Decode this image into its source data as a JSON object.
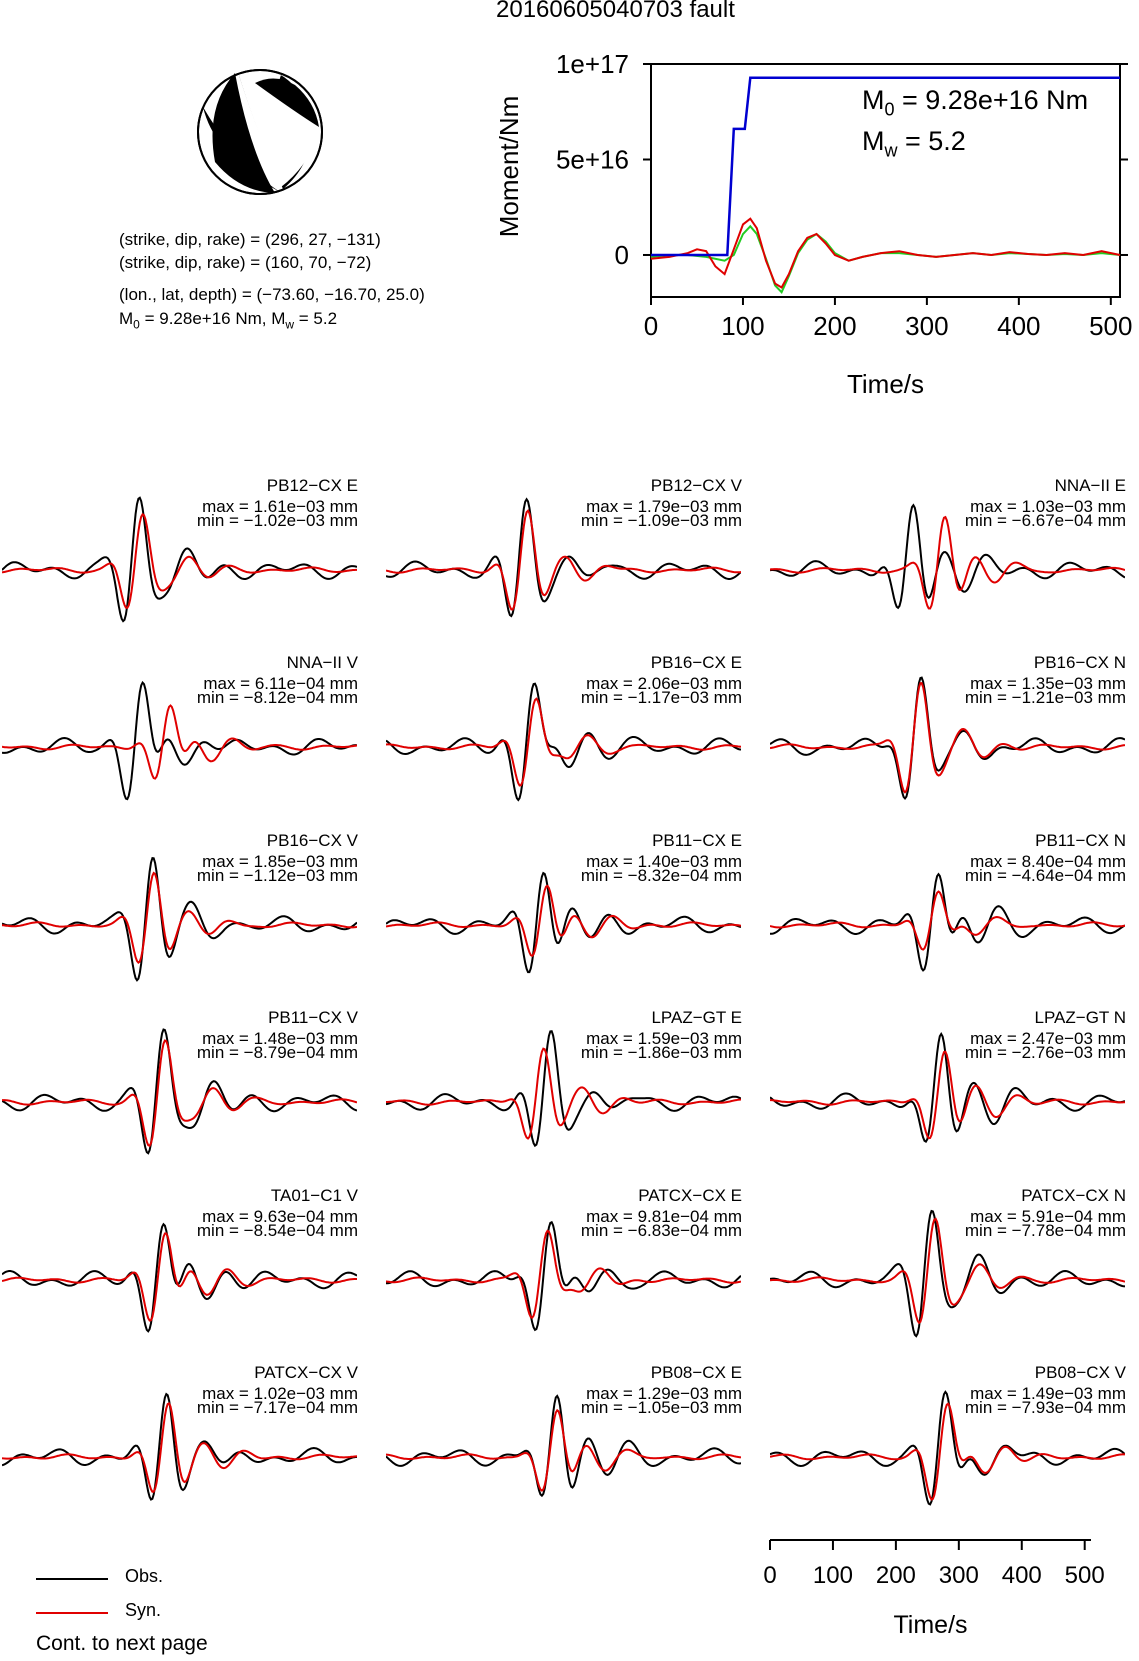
{
  "title": "20160605040703 fault",
  "focal_mechanism": {
    "icon": "beachball-icon",
    "lines": [
      "(strike, dip, rake) = (296, 27, −131)",
      "(strike, dip, rake) = (160, 70, −72)",
      "(lon., lat, depth) = (−73.60, −16.70, 25.0)"
    ],
    "moment_line": {
      "m_prefix": "M",
      "m_sub": "0",
      "m_text": " = 9.28e+16 Nm, M",
      "w_sub": "w",
      "w_text": " = 5.2"
    }
  },
  "colors": {
    "observed": "#000000",
    "synthetic": "#e00000",
    "stf": "#0000d0",
    "stf_green": "#22cc22"
  },
  "chart_data": [
    {
      "type": "line",
      "title": "",
      "xlabel": "Time/s",
      "ylabel": "Moment/Nm",
      "xlim": [
        0,
        510
      ],
      "ylim": [
        -2.2e+16,
        1e+17
      ],
      "xticks": [
        "0",
        "100",
        "200",
        "300",
        "400",
        "500"
      ],
      "yticks": [
        "0",
        "5e+16",
        "1e+17"
      ],
      "annotation": {
        "m0_prefix": "M",
        "m0_sub": "0",
        "m0_text": " = 9.28e+16 Nm",
        "mw_prefix": "M",
        "mw_sub": "w",
        "mw_text": " = 5.2"
      },
      "series": [
        {
          "color": "#0000d0",
          "x": [
            0,
            83,
            90,
            102,
            108,
            510
          ],
          "y": [
            0,
            0,
            6.6e+16,
            6.6e+16,
            9.28e+16,
            9.28e+16
          ]
        },
        {
          "color": "#e00000",
          "x": [
            0,
            20,
            40,
            50,
            60,
            70,
            80,
            90,
            100,
            108,
            115,
            125,
            135,
            142,
            150,
            160,
            170,
            180,
            190,
            200,
            215,
            230,
            250,
            270,
            290,
            310,
            330,
            350,
            370,
            390,
            410,
            430,
            450,
            470,
            490,
            510
          ],
          "y": [
            -2000000000000000.0,
            -1000000000000000.0,
            1000000000000000.0,
            3000000000000000.0,
            2000000000000000.0,
            -6000000000000000.0,
            -1e+16,
            3000000000000000.0,
            1.6e+16,
            1.9e+16,
            1.4e+16,
            -3000000000000000.0,
            -1.5e+16,
            -1.7e+16,
            -1e+16,
            2000000000000000.0,
            9000000000000000.0,
            1.1e+16,
            6000000000000000.0,
            0.0,
            -3000000000000000.0,
            -1000000000000000.0,
            1000000000000000.0,
            2000000000000000.0,
            0.0,
            -1000000000000000.0,
            0.0,
            1000000000000000.0,
            0.0,
            1500000000000000.0,
            500000000000000.0,
            0.0,
            1000000000000000.0,
            0.0,
            2000000000000000.0,
            0.0
          ]
        },
        {
          "color": "#22cc22",
          "x": [
            0,
            20,
            40,
            60,
            80,
            90,
            100,
            108,
            115,
            125,
            135,
            142,
            150,
            160,
            170,
            180,
            190,
            200,
            215,
            230,
            250,
            270,
            290,
            310,
            330,
            350,
            370,
            390,
            410,
            430,
            450,
            470,
            490,
            510
          ],
          "y": [
            -1000000000000000.0,
            0.0,
            0.0,
            -1000000000000000.0,
            -3000000000000000.0,
            0.0,
            1.1e+16,
            1.5e+16,
            1.1e+16,
            -2000000000000000.0,
            -1.6e+16,
            -1.95e+16,
            -1.1e+16,
            1000000000000000.0,
            8000000000000000.0,
            1.1e+16,
            7000000000000000.0,
            1000000000000000.0,
            -3000000000000000.0,
            -1000000000000000.0,
            1000000000000000.0,
            1000000000000000.0,
            0.0,
            -1000000000000000.0,
            0.0,
            1000000000000000.0,
            0.0,
            1000000000000000.0,
            500000000000000.0,
            0.0,
            500000000000000.0,
            0.0,
            1000000000000000.0,
            0.0
          ]
        }
      ]
    },
    {
      "type": "line",
      "xlabel": "Time/s",
      "xlim": [
        0,
        510
      ],
      "xticks": [
        "0",
        "100",
        "200",
        "300",
        "400",
        "500"
      ],
      "legend": {
        "position": "bottom-left",
        "entries": [
          {
            "name": "Obs.",
            "color": "#000000"
          },
          {
            "name": "Syn.",
            "color": "#e00000"
          }
        ]
      },
      "panels": [
        {
          "station": "PB12−CX E",
          "max": "max = 1.61e−03 mm",
          "min": "min = −1.02e−03 mm",
          "arrival": 190,
          "obs_amp": 1.0,
          "syn_amp": 0.75,
          "syn_shift": 5
        },
        {
          "station": "PB12−CX V",
          "max": "max = 1.79e−03 mm",
          "min": "min = −1.09e−03 mm",
          "arrival": 195,
          "obs_amp": 1.0,
          "syn_amp": 0.85,
          "syn_shift": 2
        },
        {
          "station": "NNA−II E",
          "max": "max = 1.03e−03 mm",
          "min": "min = −6.67e−04 mm",
          "arrival": 200,
          "obs_amp": 1.0,
          "syn_amp": 0.85,
          "syn_shift": 45
        },
        {
          "station": "NNA−II V",
          "max": "max = 6.11e−04 mm",
          "min": "min = −8.12e−04 mm",
          "arrival": 195,
          "obs_amp": 1.0,
          "syn_amp": 0.7,
          "syn_shift": 40
        },
        {
          "station": "PB16−CX E",
          "max": "max = 2.06e−03 mm",
          "min": "min = −1.17e−03 mm",
          "arrival": 205,
          "obs_amp": 1.0,
          "syn_amp": 0.75,
          "syn_shift": 3
        },
        {
          "station": "PB16−CX N",
          "max": "max = 1.35e−03 mm",
          "min": "min = −1.21e−03 mm",
          "arrival": 210,
          "obs_amp": 1.0,
          "syn_amp": 0.9,
          "syn_shift": 0
        },
        {
          "station": "PB16−CX V",
          "max": "max = 1.85e−03 mm",
          "min": "min = −1.12e−03 mm",
          "arrival": 210,
          "obs_amp": 1.0,
          "syn_amp": 0.8,
          "syn_shift": 2
        },
        {
          "station": "PB11−CX E",
          "max": "max = 1.40e−03 mm",
          "min": "min = −8.32e−04 mm",
          "arrival": 220,
          "obs_amp": 1.0,
          "syn_amp": 0.7,
          "syn_shift": 5
        },
        {
          "station": "PB11−CX N",
          "max": "max = 8.40e−04 mm",
          "min": "min = −4.64e−04 mm",
          "arrival": 235,
          "obs_amp": 1.0,
          "syn_amp": 0.55,
          "syn_shift": 0
        },
        {
          "station": "PB11−CX V",
          "max": "max = 1.48e−03 mm",
          "min": "min = −8.79e−04 mm",
          "arrival": 225,
          "obs_amp": 1.0,
          "syn_amp": 0.85,
          "syn_shift": 2
        },
        {
          "station": "LPAZ−GT E",
          "max": "max = 1.59e−03 mm",
          "min": "min = −1.86e−03 mm",
          "arrival": 230,
          "obs_amp": 1.0,
          "syn_amp": 0.75,
          "syn_shift": -10
        },
        {
          "station": "LPAZ−GT N",
          "max": "max = 2.47e−03 mm",
          "min": "min = −2.76e−03 mm",
          "arrival": 240,
          "obs_amp": 1.0,
          "syn_amp": 0.8,
          "syn_shift": 5
        },
        {
          "station": "TA01−C1 V",
          "max": "max = 9.63e−04 mm",
          "min": "min = −8.54e−04 mm",
          "arrival": 225,
          "obs_amp": 1.0,
          "syn_amp": 0.85,
          "syn_shift": 3
        },
        {
          "station": "PATCX−CX E",
          "max": "max = 9.81e−04 mm",
          "min": "min = −6.83e−04 mm",
          "arrival": 230,
          "obs_amp": 1.0,
          "syn_amp": 0.75,
          "syn_shift": -5
        },
        {
          "station": "PATCX−CX N",
          "max": "max = 5.91e−04 mm",
          "min": "min = −7.78e−04 mm",
          "arrival": 225,
          "obs_amp": 1.0,
          "syn_amp": 0.85,
          "syn_shift": 5
        },
        {
          "station": "PATCX−CX V",
          "max": "max = 1.02e−03 mm",
          "min": "min = −7.17e−04 mm",
          "arrival": 230,
          "obs_amp": 1.0,
          "syn_amp": 0.8,
          "syn_shift": 3
        },
        {
          "station": "PB08−CX E",
          "max": "max = 1.29e−03 mm",
          "min": "min = −1.05e−03 mm",
          "arrival": 240,
          "obs_amp": 1.0,
          "syn_amp": 0.75,
          "syn_shift": 0
        },
        {
          "station": "PB08−CX V",
          "max": "max = 1.49e−03 mm",
          "min": "min = −7.93e−04 mm",
          "arrival": 245,
          "obs_amp": 1.0,
          "syn_amp": 0.85,
          "syn_shift": 3
        }
      ]
    }
  ],
  "legend": {
    "obs": "Obs.",
    "syn": "Syn."
  },
  "footer": "Cont. to next page"
}
